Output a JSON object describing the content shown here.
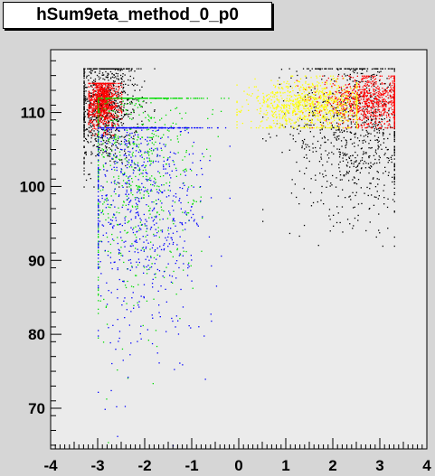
{
  "chart_data": {
    "type": "scatter",
    "title": "hSum9eta_method_0_p0",
    "xlabel": "",
    "ylabel": "",
    "xlim": [
      -4,
      4
    ],
    "ylim": [
      64.5,
      118.5
    ],
    "x_ticks": [
      -4,
      -3,
      -2,
      -1,
      0,
      1,
      2,
      3,
      4
    ],
    "y_ticks": [
      70,
      80,
      90,
      100,
      110
    ],
    "grid": false,
    "legend": "none",
    "frame_color": "#ebebeb",
    "series": [
      {
        "color": "#000000",
        "clusters": [
          {
            "x_range": [
              -3.3,
              -1.8
            ],
            "y_range": [
              100,
              116
            ],
            "center": [
              -2.9,
              111
            ]
          },
          {
            "x_range": [
              0.5,
              3.3
            ],
            "y_range": [
              92,
              116
            ],
            "center": [
              2.5,
              108
            ]
          }
        ]
      },
      {
        "color": "#ff0000",
        "clusters": [
          {
            "x_range": [
              -3.2,
              -2.5
            ],
            "y_range": [
              107,
              114
            ],
            "center": [
              -2.9,
              111.5
            ]
          },
          {
            "x_range": [
              1.2,
              3.3
            ],
            "y_range": [
              108,
              115
            ],
            "center": [
              2.8,
              111.5
            ]
          }
        ]
      },
      {
        "color": "#ffff00",
        "clusters": [
          {
            "x_range": [
              -0.05,
              2.5
            ],
            "y_range": [
              108,
              115
            ],
            "center": [
              1.5,
              111
            ]
          }
        ]
      },
      {
        "color": "#00dd00",
        "clusters": [
          {
            "x_range": [
              -3.0,
              -0.2
            ],
            "y_range": [
              65,
              112
            ],
            "center": [
              -2.3,
              107
            ]
          }
        ]
      },
      {
        "color": "#0000ff",
        "clusters": [
          {
            "x_range": [
              -3.0,
              -0.2
            ],
            "y_range": [
              65,
              108
            ],
            "center": [
              -2.1,
              100
            ]
          }
        ]
      }
    ]
  }
}
